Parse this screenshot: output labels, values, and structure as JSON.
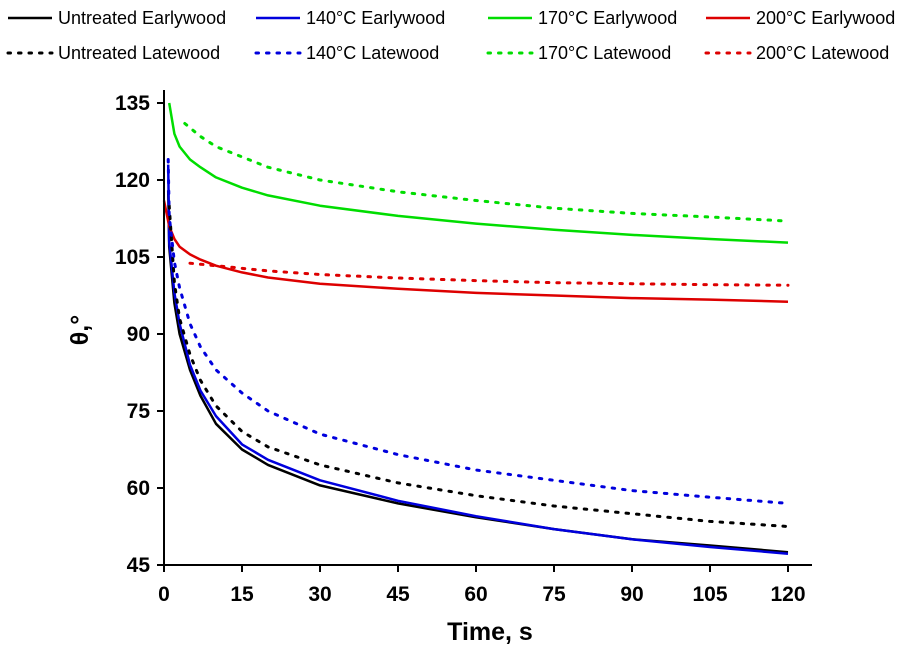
{
  "chart_data": {
    "type": "line",
    "xlabel": "Time, s",
    "ylabel": "θ,°",
    "xlim": [
      0,
      120
    ],
    "ylim": [
      45,
      135
    ],
    "xticks": [
      0,
      15,
      30,
      45,
      60,
      75,
      90,
      105,
      120
    ],
    "yticks": [
      45,
      60,
      75,
      90,
      105,
      120,
      135
    ],
    "grid": false,
    "legend_position": "top",
    "series": [
      {
        "name": "Untreated Earlywood",
        "color": "#000000",
        "style": "solid",
        "x": [
          0.8,
          1,
          2,
          3,
          5,
          7,
          10,
          15,
          20,
          30,
          45,
          60,
          75,
          90,
          105,
          120
        ],
        "y": [
          118,
          107,
          96,
          90,
          83,
          78,
          72.5,
          67.5,
          64.5,
          60.5,
          57,
          54.3,
          52,
          50,
          48.8,
          47.5
        ]
      },
      {
        "name": "140°C Earlywood",
        "color": "#0000dd",
        "style": "solid",
        "x": [
          0.8,
          1,
          2,
          3,
          5,
          7,
          10,
          15,
          20,
          30,
          45,
          60,
          75,
          90,
          105,
          120
        ],
        "y": [
          123,
          108,
          98,
          92,
          84,
          79,
          74,
          68.5,
          65.5,
          61.5,
          57.5,
          54.5,
          52,
          50,
          48.5,
          47.2
        ]
      },
      {
        "name": "170°C Earlywood",
        "color": "#00dd00",
        "style": "solid",
        "x": [
          1,
          2,
          3,
          5,
          7,
          10,
          15,
          20,
          30,
          45,
          60,
          75,
          90,
          105,
          120
        ],
        "y": [
          135,
          129,
          126.5,
          124,
          122.5,
          120.5,
          118.5,
          117,
          115,
          113,
          111.5,
          110.3,
          109.3,
          108.5,
          107.8
        ]
      },
      {
        "name": "200°C Earlywood",
        "color": "#dd0000",
        "style": "solid",
        "x": [
          0,
          1,
          2,
          3,
          5,
          7,
          10,
          15,
          20,
          30,
          45,
          60,
          75,
          90,
          105,
          120
        ],
        "y": [
          116,
          111,
          108.5,
          107,
          105.5,
          104.5,
          103.3,
          102,
          101,
          99.8,
          98.8,
          98,
          97.5,
          97,
          96.7,
          96.3
        ]
      },
      {
        "name": "Untreated Latewood",
        "color": "#000000",
        "style": "dotted",
        "x": [
          1,
          2,
          3,
          5,
          7,
          10,
          15,
          20,
          30,
          45,
          60,
          75,
          90,
          105,
          120
        ],
        "y": [
          115,
          100,
          93,
          86,
          81,
          76,
          71,
          68,
          64.5,
          61,
          58.5,
          56.5,
          55,
          53.5,
          52.5
        ]
      },
      {
        "name": "140°C Latewood",
        "color": "#0000dd",
        "style": "dotted",
        "x": [
          0.8,
          1,
          2,
          3,
          5,
          7,
          10,
          15,
          20,
          30,
          45,
          60,
          75,
          90,
          105,
          120
        ],
        "y": [
          124,
          113,
          104,
          99,
          92,
          87.5,
          83,
          78.5,
          75,
          70.5,
          66.5,
          63.5,
          61.5,
          59.5,
          58.2,
          57
        ]
      },
      {
        "name": "170°C Latewood",
        "color": "#00dd00",
        "style": "dotted",
        "x": [
          4,
          7,
          10,
          15,
          20,
          30,
          45,
          60,
          75,
          90,
          105,
          120
        ],
        "y": [
          131,
          128.5,
          126.5,
          124.5,
          122.5,
          120,
          117.7,
          116,
          114.5,
          113.5,
          112.8,
          112
        ]
      },
      {
        "name": "200°C Latewood",
        "color": "#dd0000",
        "style": "dotted",
        "x": [
          5,
          7,
          10,
          15,
          20,
          30,
          45,
          60,
          75,
          90,
          105,
          120
        ],
        "y": [
          103.8,
          103.6,
          103.3,
          102.8,
          102.3,
          101.6,
          100.9,
          100.4,
          100,
          99.8,
          99.6,
          99.5
        ]
      }
    ]
  }
}
